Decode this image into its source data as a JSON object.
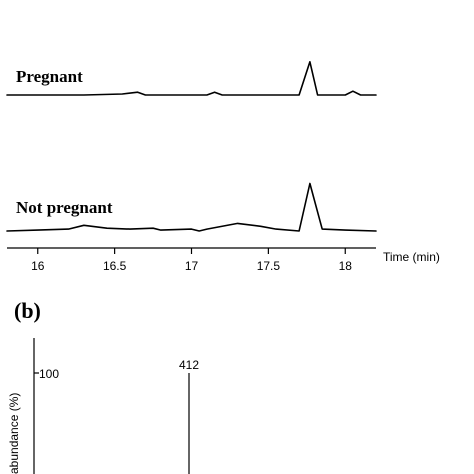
{
  "chart_data": [
    {
      "type": "line",
      "xlabel": "Time (min)",
      "xlim": [
        15.8,
        18.2
      ],
      "x_ticks": [
        "16",
        "16.5",
        "17",
        "17.5",
        "18"
      ],
      "series": [
        {
          "name": "Pregnant",
          "points": [
            [
              15.8,
              0.0
            ],
            [
              16.3,
              0.0
            ],
            [
              16.55,
              0.01
            ],
            [
              16.65,
              0.03
            ],
            [
              16.7,
              0.0
            ],
            [
              17.1,
              0.0
            ],
            [
              17.15,
              0.03
            ],
            [
              17.2,
              0.0
            ],
            [
              17.6,
              0.0
            ],
            [
              17.7,
              0.0
            ],
            [
              17.77,
              0.35
            ],
            [
              17.82,
              0.0
            ],
            [
              18.0,
              0.0
            ],
            [
              18.05,
              0.04
            ],
            [
              18.1,
              0.0
            ],
            [
              18.2,
              0.0
            ]
          ]
        },
        {
          "name": "Not pregnant",
          "points": [
            [
              15.8,
              0.0
            ],
            [
              16.0,
              0.01
            ],
            [
              16.2,
              0.02
            ],
            [
              16.3,
              0.06
            ],
            [
              16.45,
              0.03
            ],
            [
              16.6,
              0.02
            ],
            [
              16.75,
              0.03
            ],
            [
              16.8,
              0.01
            ],
            [
              17.0,
              0.02
            ],
            [
              17.05,
              0.0
            ],
            [
              17.1,
              0.02
            ],
            [
              17.3,
              0.08
            ],
            [
              17.45,
              0.05
            ],
            [
              17.55,
              0.02
            ],
            [
              17.7,
              0.0
            ],
            [
              17.77,
              0.5
            ],
            [
              17.85,
              0.02
            ],
            [
              18.0,
              0.01
            ],
            [
              18.2,
              0.0
            ]
          ]
        }
      ]
    },
    {
      "type": "bar",
      "panel_label": "(b)",
      "ylabel": "abundance (%)",
      "y_ticks": [
        "100"
      ],
      "peaks": [
        {
          "label": "412",
          "value": 100
        }
      ]
    }
  ]
}
